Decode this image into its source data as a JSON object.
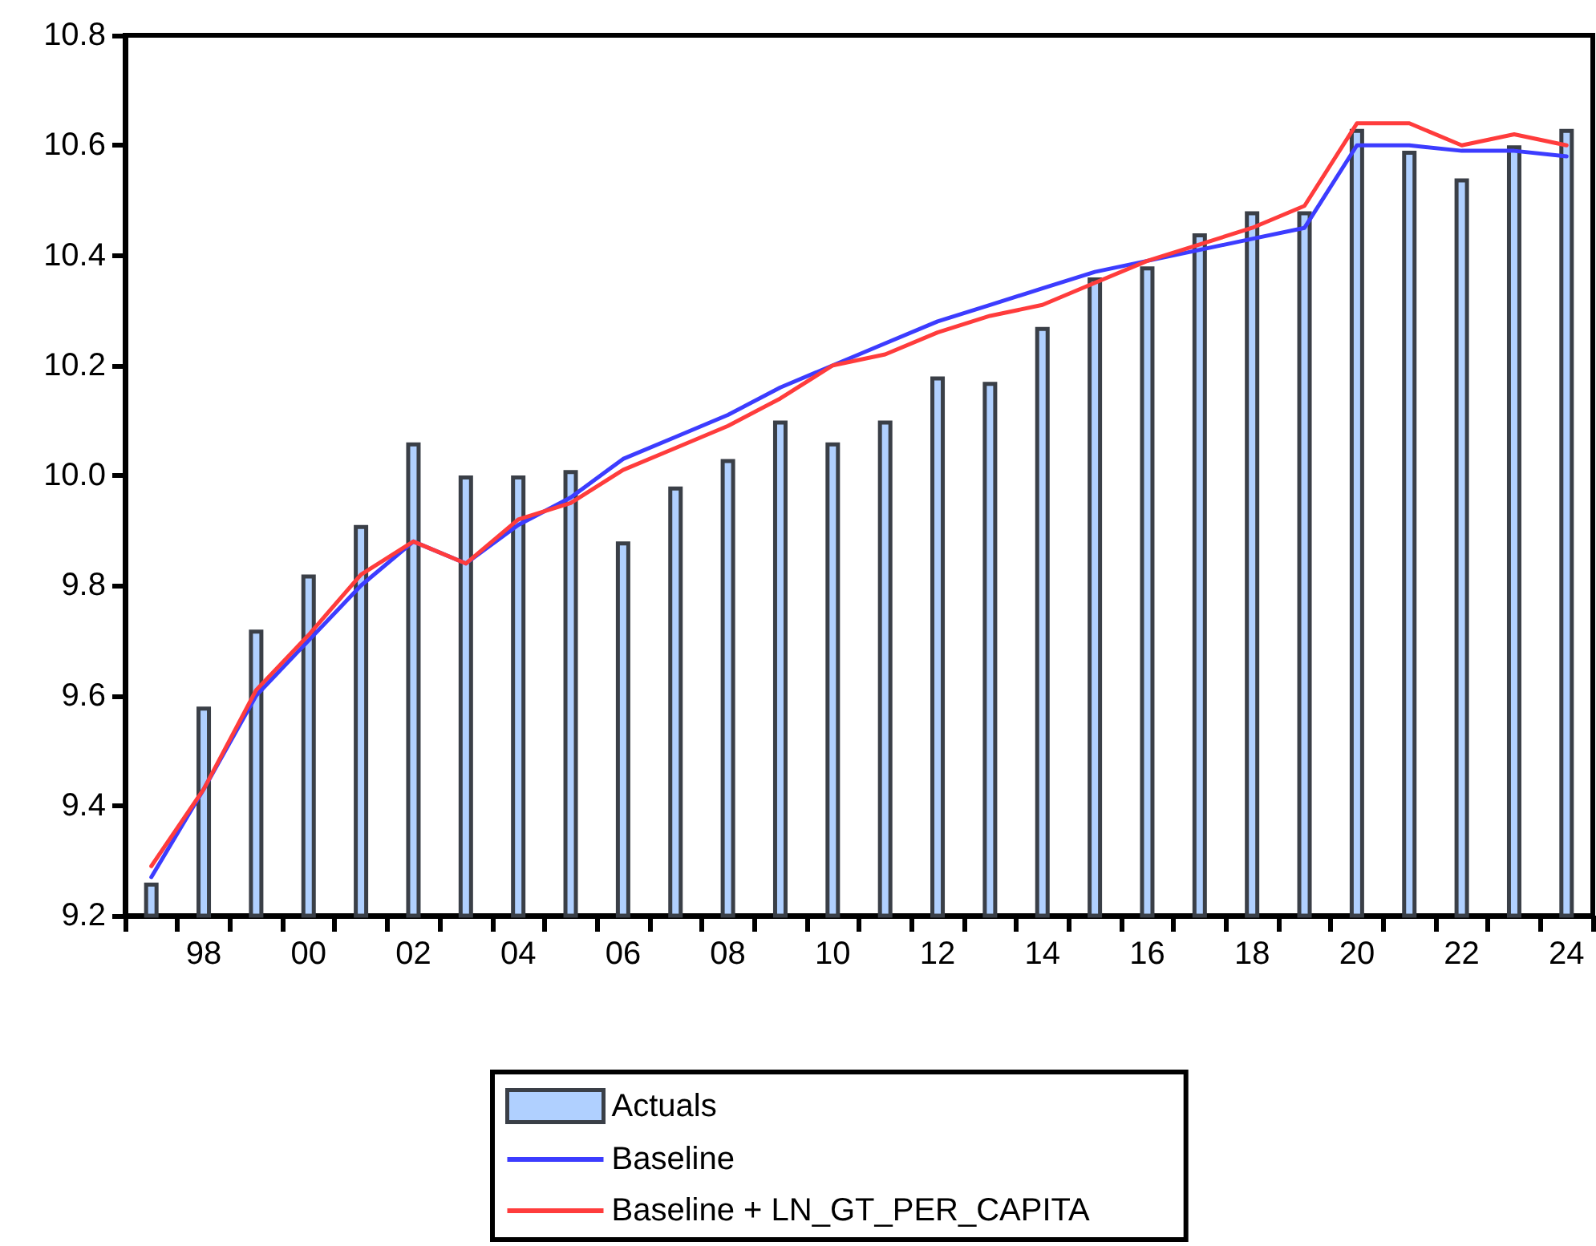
{
  "chart_data": {
    "type": "bar",
    "categories": [
      null,
      "98",
      null,
      "00",
      null,
      "02",
      null,
      "04",
      null,
      "06",
      null,
      "08",
      null,
      "10",
      null,
      "12",
      null,
      "14",
      null,
      "16",
      null,
      "18",
      null,
      "20",
      null,
      "22",
      null,
      "24"
    ],
    "series": [
      {
        "name": "Actuals",
        "color": "#b0d0ff",
        "values": [
          9.26,
          9.58,
          9.72,
          9.82,
          9.91,
          10.06,
          10.0,
          10.0,
          10.01,
          9.88,
          9.98,
          10.03,
          10.1,
          10.06,
          10.1,
          10.18,
          10.17,
          10.27,
          10.36,
          10.38,
          10.44,
          10.48,
          10.48,
          10.63,
          10.59,
          10.54,
          10.6,
          10.63
        ]
      },
      {
        "name": "Baseline",
        "type": "line",
        "color": "#3c3cff",
        "values": [
          9.27,
          9.43,
          9.6,
          9.7,
          9.8,
          9.88,
          9.84,
          9.91,
          9.96,
          10.03,
          10.07,
          10.11,
          10.16,
          10.2,
          10.24,
          10.28,
          10.31,
          10.34,
          10.37,
          10.39,
          10.41,
          10.43,
          10.45,
          10.6,
          10.6,
          10.59,
          10.59,
          10.58
        ]
      },
      {
        "name": "Baseline + LN_GT_PER_CAPITA",
        "type": "line",
        "color": "#ff3c3c",
        "values": [
          9.29,
          9.43,
          9.61,
          9.71,
          9.82,
          9.88,
          9.84,
          9.92,
          9.95,
          10.01,
          10.05,
          10.09,
          10.14,
          10.2,
          10.22,
          10.26,
          10.29,
          10.31,
          10.35,
          10.39,
          10.42,
          10.45,
          10.49,
          10.64,
          10.64,
          10.6,
          10.62,
          10.6
        ]
      }
    ],
    "ylim": [
      9.2,
      10.8
    ],
    "yticks": [
      {
        "value": 9.2,
        "label": "9.2"
      },
      {
        "value": 9.4,
        "label": "9.4"
      },
      {
        "value": 9.6,
        "label": "9.6"
      },
      {
        "value": 9.8,
        "label": "9.8"
      },
      {
        "value": 10.0,
        "label": "10.0"
      },
      {
        "value": 10.2,
        "label": "10.2"
      },
      {
        "value": 10.4,
        "label": "10.4"
      },
      {
        "value": 10.6,
        "label": "10.6"
      },
      {
        "value": 10.8,
        "label": "10.8"
      }
    ],
    "grid": false,
    "legend": "bottom",
    "marker": "none",
    "line_style": "solid"
  }
}
